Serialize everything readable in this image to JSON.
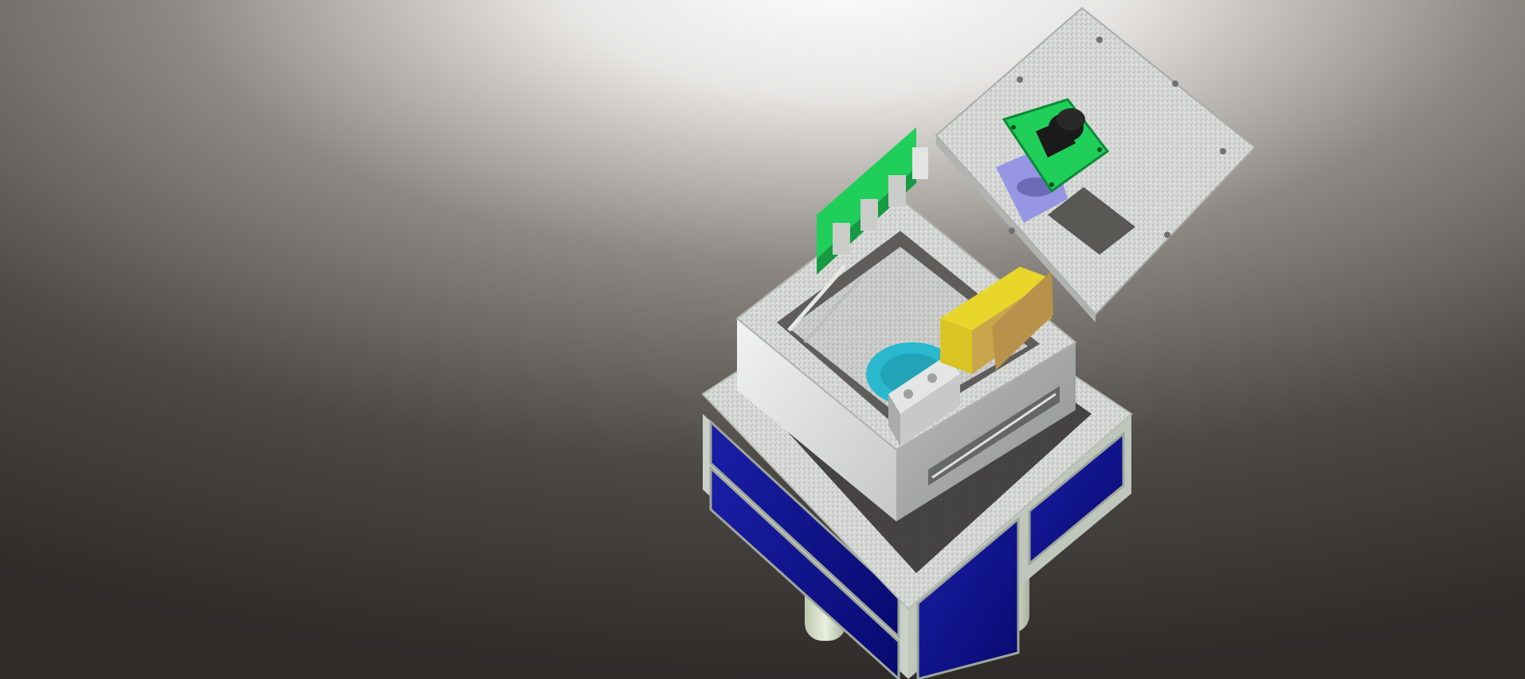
{
  "scene": {
    "subject": "cad-render-cubesat-assembly",
    "colors": {
      "floor_top": "#ffffff",
      "floor_mid": "#7d7873",
      "floor_bottom": "#2f2c2a",
      "solar_panel": "#0b0f8c",
      "aluminum": "#d9dcd8",
      "pcb_green": "#1fcf5a",
      "yellow_block": "#e8d62a",
      "tan_block": "#c9a64b",
      "cyan_part": "#2ab8cf"
    }
  }
}
